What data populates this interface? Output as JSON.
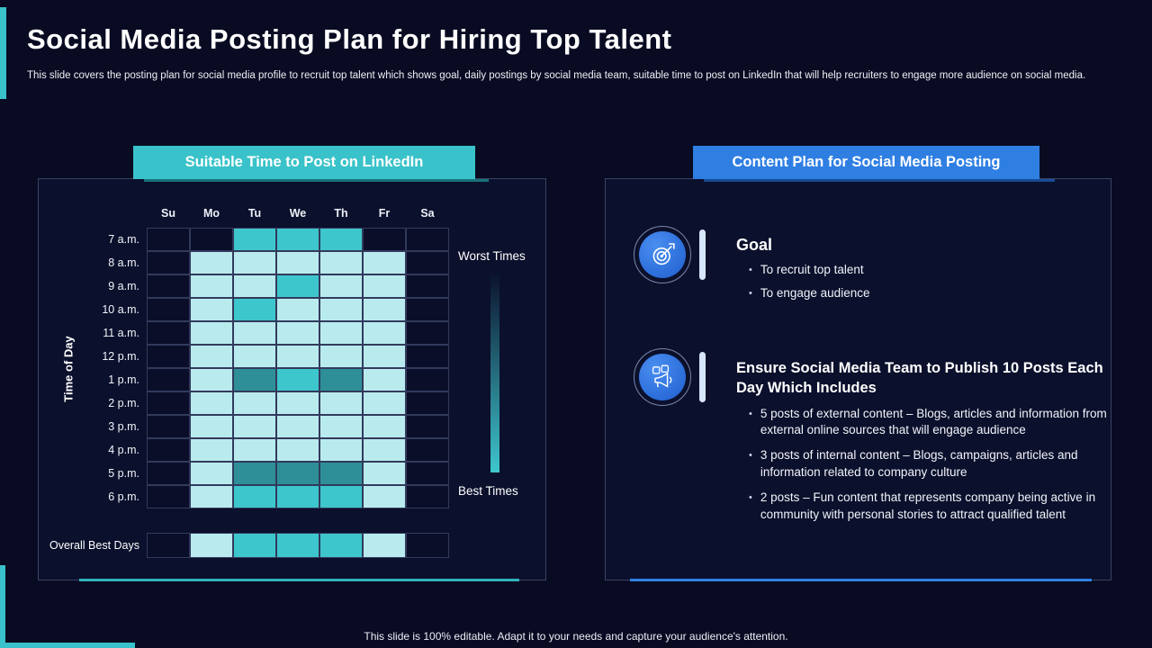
{
  "theme": {
    "background": "#080b22",
    "panel_border": "#3b4263",
    "accent_teal": "#39c2c9",
    "accent_blue": "#2f7fe3",
    "heatmap_colors": {
      "0": "#0a0e29",
      "1": "#b9ebee",
      "2": "#3ec6cd",
      "3": "#2e8f98"
    }
  },
  "slide": {
    "title": "Social Media Posting Plan for Hiring Top Talent",
    "subtitle": "This slide covers the posting plan for social media profile to recruit top talent which shows goal, daily postings by social media team, suitable time to post on LinkedIn that will help recruiters to engage more audience on social media.",
    "footer": "This slide is 100% editable. Adapt it to your needs and capture your audience's attention."
  },
  "heatmap_panel": {
    "header": "Suitable Time to Post on LinkedIn",
    "y_axis_label": "Time of Day",
    "legend_worst": "Worst Times",
    "legend_best": "Best Times",
    "overall_label": "Overall Best Days"
  },
  "content_panel": {
    "header": "Content Plan for Social Media Posting",
    "sections": [
      {
        "icon": "target-dart-icon",
        "title": "Goal",
        "bullets": [
          "To recruit top talent",
          "To engage audience"
        ]
      },
      {
        "icon": "megaphone-social-icon",
        "title": "Ensure Social Media Team to Publish 10 Posts Each Day Which Includes",
        "bullets": [
          "5 posts of external content – Blogs, articles and information from external online sources that will engage audience",
          "3 posts of internal content – Blogs, campaigns, articles and information related to company culture",
          "2 posts – Fun content that represents company being active in community with personal stories to attract qualified talent"
        ]
      }
    ]
  },
  "chart_data": {
    "type": "heatmap",
    "title": "Suitable Time to Post on LinkedIn",
    "x_categories": [
      "Su",
      "Mo",
      "Tu",
      "We",
      "Th",
      "Fr",
      "Sa"
    ],
    "y_categories": [
      "7 a.m.",
      "8 a.m.",
      "9 a.m.",
      "10 a.m.",
      "11 a.m.",
      "12 p.m.",
      "1 p.m.",
      "2 p.m.",
      "3 p.m.",
      "4 p.m.",
      "5 p.m.",
      "6 p.m."
    ],
    "ylabel": "Time of Day",
    "legend": {
      "top_label": "Worst Times",
      "bottom_label": "Best Times"
    },
    "level_meaning": {
      "0": "worst",
      "1": "fair",
      "2": "good",
      "3": "best"
    },
    "values": [
      [
        0,
        0,
        2,
        2,
        2,
        0,
        0
      ],
      [
        0,
        1,
        1,
        1,
        1,
        1,
        0
      ],
      [
        0,
        1,
        1,
        2,
        1,
        1,
        0
      ],
      [
        0,
        1,
        2,
        1,
        1,
        1,
        0
      ],
      [
        0,
        1,
        1,
        1,
        1,
        1,
        0
      ],
      [
        0,
        1,
        1,
        1,
        1,
        1,
        0
      ],
      [
        0,
        1,
        3,
        2,
        3,
        1,
        0
      ],
      [
        0,
        1,
        1,
        1,
        1,
        1,
        0
      ],
      [
        0,
        1,
        1,
        1,
        1,
        1,
        0
      ],
      [
        0,
        1,
        1,
        1,
        1,
        1,
        0
      ],
      [
        0,
        1,
        3,
        3,
        3,
        1,
        0
      ],
      [
        0,
        1,
        2,
        2,
        2,
        1,
        0
      ]
    ],
    "overall_best_days": [
      0,
      1,
      2,
      2,
      2,
      1,
      0
    ]
  }
}
